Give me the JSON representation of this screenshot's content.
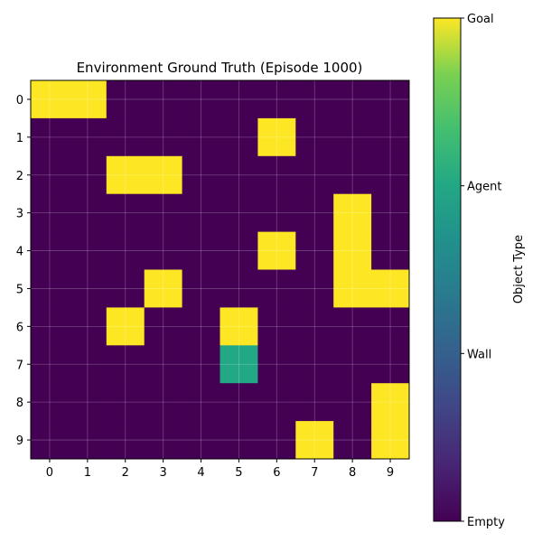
{
  "chart_data": {
    "type": "heatmap",
    "title": "Environment Ground Truth (Episode 1000)",
    "xlabel": "",
    "ylabel": "",
    "x_ticks": [
      "0",
      "1",
      "2",
      "3",
      "4",
      "5",
      "6",
      "7",
      "8",
      "9"
    ],
    "y_ticks": [
      "0",
      "1",
      "2",
      "3",
      "4",
      "5",
      "6",
      "7",
      "8",
      "9"
    ],
    "grid": true,
    "colormap": "viridis",
    "value_range": [
      0,
      3
    ],
    "colorbar": {
      "label": "Object Type",
      "ticks": [
        {
          "value": 0,
          "label": "Empty"
        },
        {
          "value": 1,
          "label": "Wall"
        },
        {
          "value": 2,
          "label": "Agent"
        },
        {
          "value": 3,
          "label": "Goal"
        }
      ]
    },
    "values": [
      [
        3,
        3,
        0,
        0,
        0,
        0,
        0,
        0,
        0,
        0
      ],
      [
        0,
        0,
        0,
        0,
        0,
        0,
        3,
        0,
        0,
        0
      ],
      [
        0,
        0,
        3,
        3,
        0,
        0,
        0,
        0,
        0,
        0
      ],
      [
        0,
        0,
        0,
        0,
        0,
        0,
        0,
        0,
        3,
        0
      ],
      [
        0,
        0,
        0,
        0,
        0,
        0,
        3,
        0,
        3,
        0
      ],
      [
        0,
        0,
        0,
        3,
        0,
        0,
        0,
        0,
        3,
        3
      ],
      [
        0,
        0,
        3,
        0,
        0,
        3,
        0,
        0,
        0,
        0
      ],
      [
        0,
        0,
        0,
        0,
        0,
        2,
        0,
        0,
        0,
        0
      ],
      [
        0,
        0,
        0,
        0,
        0,
        0,
        0,
        0,
        0,
        3
      ],
      [
        0,
        0,
        0,
        0,
        0,
        0,
        0,
        3,
        0,
        3
      ]
    ]
  }
}
